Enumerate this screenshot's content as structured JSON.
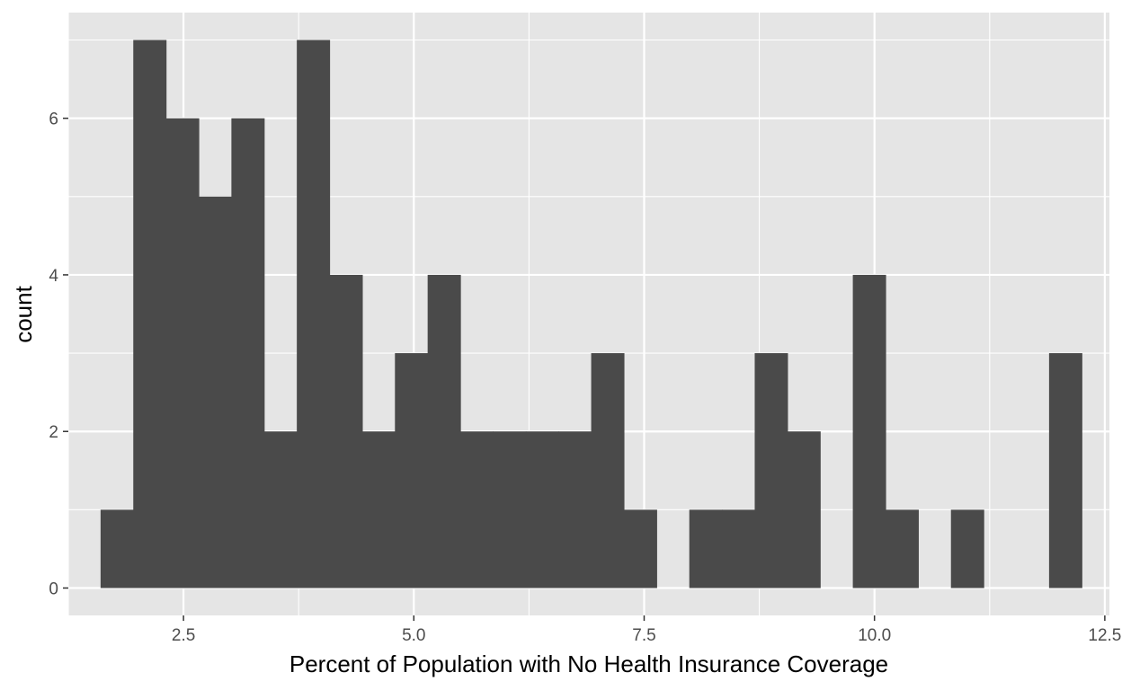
{
  "chart_data": {
    "type": "bar",
    "subtype": "histogram",
    "title": "",
    "xlabel": "Percent of Population with No Health Insurance Coverage",
    "ylabel": "count",
    "xlim": [
      1.25,
      12.55
    ],
    "ylim": [
      -0.35,
      7.35
    ],
    "x_ticks": [
      2.5,
      5.0,
      7.5,
      10.0,
      12.5
    ],
    "x_tick_labels": [
      "2.5",
      "5.0",
      "7.5",
      "10.0",
      "12.5"
    ],
    "y_ticks": [
      0,
      2,
      4,
      6
    ],
    "y_tick_labels": [
      "0",
      "2",
      "4",
      "6"
    ],
    "bin_width": 0.355,
    "bins": [
      {
        "x0": 1.6,
        "x1": 1.955,
        "count": 1
      },
      {
        "x0": 1.955,
        "x1": 2.31,
        "count": 7
      },
      {
        "x0": 2.31,
        "x1": 2.665,
        "count": 6
      },
      {
        "x0": 2.665,
        "x1": 3.02,
        "count": 5
      },
      {
        "x0": 3.02,
        "x1": 3.375,
        "count": 6
      },
      {
        "x0": 3.375,
        "x1": 3.73,
        "count": 2
      },
      {
        "x0": 3.73,
        "x1": 4.085,
        "count": 7
      },
      {
        "x0": 4.085,
        "x1": 4.44,
        "count": 4
      },
      {
        "x0": 4.44,
        "x1": 4.795,
        "count": 2
      },
      {
        "x0": 4.795,
        "x1": 5.15,
        "count": 3
      },
      {
        "x0": 5.15,
        "x1": 5.505,
        "count": 4
      },
      {
        "x0": 5.505,
        "x1": 5.86,
        "count": 2
      },
      {
        "x0": 5.86,
        "x1": 6.215,
        "count": 2
      },
      {
        "x0": 6.215,
        "x1": 6.57,
        "count": 2
      },
      {
        "x0": 6.57,
        "x1": 6.925,
        "count": 2
      },
      {
        "x0": 6.925,
        "x1": 7.28,
        "count": 3
      },
      {
        "x0": 7.28,
        "x1": 7.635,
        "count": 1
      },
      {
        "x0": 7.635,
        "x1": 7.99,
        "count": 0
      },
      {
        "x0": 7.99,
        "x1": 8.345,
        "count": 1
      },
      {
        "x0": 8.345,
        "x1": 8.7,
        "count": 1
      },
      {
        "x0": 8.7,
        "x1": 9.055,
        "count": 3
      },
      {
        "x0": 9.055,
        "x1": 9.41,
        "count": 2
      },
      {
        "x0": 9.41,
        "x1": 9.765,
        "count": 0
      },
      {
        "x0": 9.765,
        "x1": 10.12,
        "count": 4
      },
      {
        "x0": 10.12,
        "x1": 10.475,
        "count": 1
      },
      {
        "x0": 10.475,
        "x1": 10.83,
        "count": 0
      },
      {
        "x0": 10.83,
        "x1": 11.185,
        "count": 1
      },
      {
        "x0": 11.185,
        "x1": 11.54,
        "count": 0
      },
      {
        "x0": 11.54,
        "x1": 11.895,
        "count": 0
      },
      {
        "x0": 11.895,
        "x1": 12.25,
        "count": 3
      }
    ],
    "grid": true,
    "legend": "none",
    "colors": {
      "panel_background": "#e5e5e5",
      "grid_line": "#ffffff",
      "bar_fill": "#4a4a4a",
      "tick_mark": "#333333"
    }
  }
}
